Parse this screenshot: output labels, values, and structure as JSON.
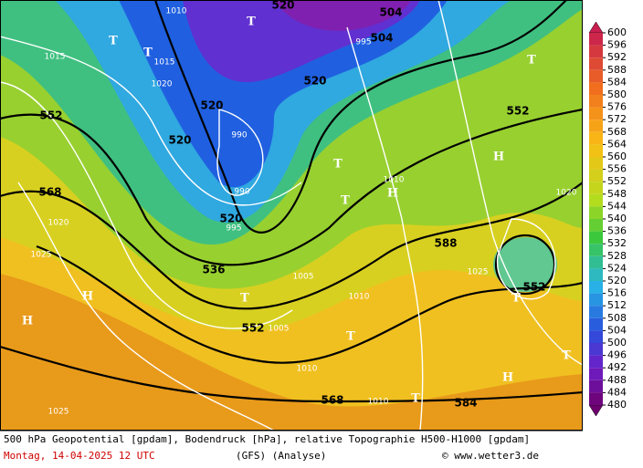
{
  "caption": {
    "description": "500 hPa Geopotential [gpdam], Bodendruck [hPa], relative Topographie H500-H1000 [gpdam]",
    "date": "Montag, 14-04-2025  12 UTC",
    "model": "(GFS)  (Analyse)",
    "source": "© www.wetter3.de"
  },
  "colorbar": {
    "ticks": [
      600,
      596,
      592,
      588,
      584,
      580,
      576,
      572,
      568,
      564,
      560,
      556,
      552,
      548,
      544,
      540,
      536,
      532,
      528,
      524,
      520,
      516,
      512,
      508,
      504,
      500,
      496,
      492,
      488,
      484,
      480
    ]
  },
  "geopotential_labels": [
    "520",
    "504",
    "504",
    "520",
    "552",
    "520",
    "520",
    "552",
    "568",
    "520",
    "536",
    "588",
    "552",
    "552",
    "568",
    "584"
  ],
  "pressure_labels": [
    "1010",
    "1015",
    "1015",
    "1020",
    "995",
    "990",
    "990",
    "995",
    "1010",
    "1020",
    "1025",
    "1005",
    "1010",
    "1005",
    "1010",
    "1025",
    "1025",
    "1020",
    "1010"
  ],
  "highs": [
    "H",
    "H",
    "H",
    "H",
    "H"
  ],
  "lows": [
    "T",
    "T",
    "T",
    "T",
    "T",
    "T",
    "T",
    "T",
    "T",
    "T",
    "T"
  ]
}
